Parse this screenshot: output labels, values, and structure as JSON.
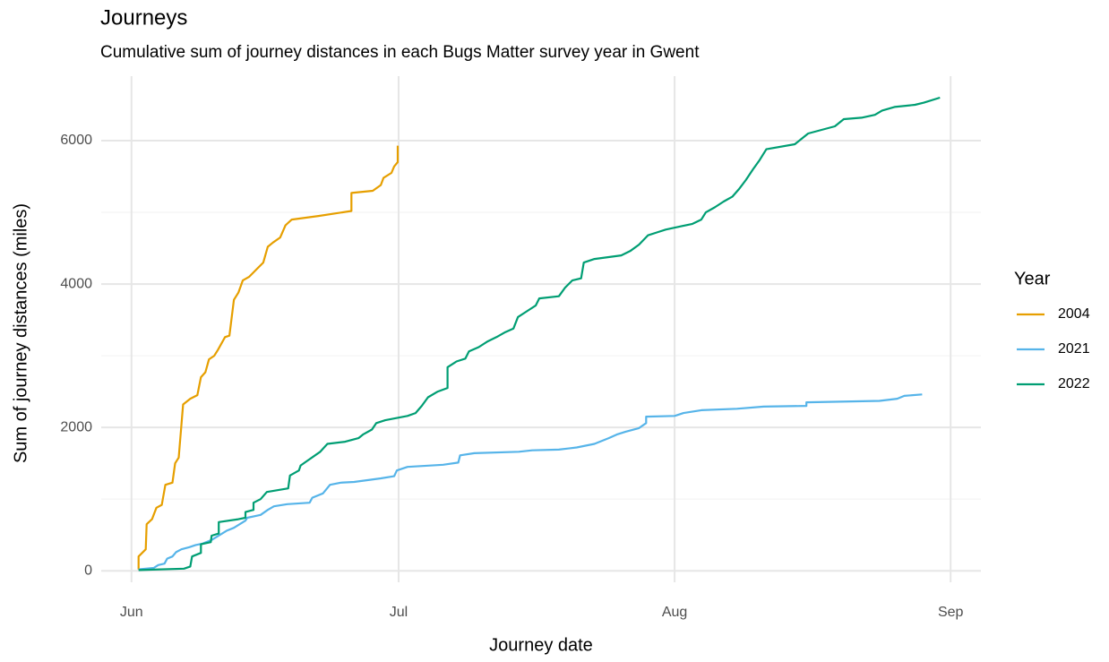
{
  "chart_data": {
    "type": "line",
    "title": "Journeys",
    "subtitle": "Cumulative sum of journey distances in each Bugs Matter survey year in Gwent",
    "x_label": "Journey date",
    "y_label": "Sum of journey distances (miles)",
    "legend_title": "Year",
    "legend_position": "right",
    "grid": true,
    "xlim": [
      -3.4,
      95.4
    ],
    "xticks": [
      {
        "value": 0,
        "label": "Jun"
      },
      {
        "value": 30,
        "label": "Jul"
      },
      {
        "value": 61,
        "label": "Aug"
      },
      {
        "value": 92,
        "label": "Sep"
      }
    ],
    "ylim": [
      -160,
      6900
    ],
    "yticks": [
      0,
      2000,
      4000,
      6000
    ],
    "yminor_ticks": [
      1000,
      3000,
      5000
    ],
    "series": [
      {
        "name": "2004",
        "color": "#E69F00",
        "x": [
          0.8,
          0.8,
          1.6,
          1.7,
          2.3,
          2.8,
          3.4,
          3.8,
          4.6,
          4.9,
          5.3,
          5.8,
          6.6,
          7.4,
          7.8,
          8.3,
          8.7,
          9.3,
          9.7,
          10.5,
          11.0,
          11.5,
          12.0,
          12.5,
          13.2,
          14.0,
          14.8,
          15.3,
          15.9,
          16.7,
          17.3,
          18.0,
          21.0,
          24.7,
          24.7,
          27.1,
          28.0,
          28.3,
          29.2,
          29.5,
          29.9,
          29.9
        ],
        "values": [
          20,
          200,
          300,
          650,
          720,
          880,
          920,
          1200,
          1230,
          1500,
          1580,
          2320,
          2400,
          2450,
          2700,
          2770,
          2950,
          3000,
          3080,
          3260,
          3280,
          3780,
          3880,
          4050,
          4100,
          4200,
          4300,
          4520,
          4580,
          4650,
          4820,
          4900,
          4950,
          5020,
          5270,
          5300,
          5380,
          5480,
          5550,
          5640,
          5700,
          5930
        ]
      },
      {
        "name": "2021",
        "color": "#56B4E9",
        "x": [
          0.8,
          2.5,
          3.0,
          3.7,
          4.0,
          4.6,
          5.0,
          5.6,
          6.5,
          7.2,
          8.0,
          9.0,
          10.7,
          11.5,
          12.8,
          13.0,
          14.5,
          15.3,
          16.0,
          17.5,
          20.0,
          20.3,
          21.5,
          22.3,
          23.5,
          25.0,
          28.0,
          29.5,
          29.8,
          31.0,
          35.0,
          36.7,
          36.9,
          38.5,
          43.5,
          45.0,
          48.0,
          50.0,
          52.0,
          53.6,
          54.5,
          55.5,
          57.0,
          57.8,
          57.8,
          61.0,
          62.0,
          64.0,
          68.0,
          71.0,
          75.8,
          75.8,
          84.0,
          86.0,
          86.8,
          88.8
        ],
        "values": [
          20,
          40,
          80,
          100,
          170,
          200,
          260,
          300,
          330,
          360,
          380,
          430,
          560,
          600,
          700,
          740,
          780,
          850,
          900,
          930,
          950,
          1020,
          1080,
          1200,
          1230,
          1240,
          1290,
          1320,
          1400,
          1450,
          1480,
          1510,
          1610,
          1640,
          1660,
          1680,
          1690,
          1720,
          1770,
          1850,
          1900,
          1940,
          1990,
          2060,
          2150,
          2160,
          2200,
          2240,
          2260,
          2290,
          2300,
          2350,
          2370,
          2400,
          2440,
          2460
        ]
      },
      {
        "name": "2022",
        "color": "#009E73",
        "x": [
          0.8,
          5.9,
          6.6,
          6.8,
          7.8,
          7.8,
          8.9,
          9.0,
          9.8,
          9.8,
          12.0,
          12.8,
          12.8,
          13.7,
          13.7,
          14.5,
          15.2,
          17.6,
          17.8,
          18.8,
          19.0,
          19.8,
          20.5,
          21.2,
          22.0,
          24.0,
          25.5,
          26.0,
          27.0,
          27.5,
          28.5,
          31.0,
          31.9,
          32.6,
          33.3,
          34.4,
          35.5,
          35.5,
          36.5,
          37.5,
          37.9,
          39.0,
          40.0,
          41.0,
          42.0,
          42.9,
          43.4,
          44.4,
          45.4,
          45.8,
          48.0,
          48.7,
          49.5,
          50.5,
          50.8,
          52.0,
          55.0,
          56.0,
          57.0,
          58.0,
          59.0,
          60.0,
          61.5,
          63.0,
          64.0,
          64.5,
          65.5,
          66.5,
          67.5,
          68.2,
          69.0,
          69.8,
          70.5,
          71.3,
          74.5,
          75.3,
          76.0,
          77.5,
          79.0,
          80.0,
          82.0,
          83.5,
          84.3,
          85.7,
          88.0,
          89.0,
          90.8
        ],
        "values": [
          10,
          30,
          60,
          200,
          250,
          370,
          400,
          490,
          520,
          680,
          720,
          740,
          820,
          850,
          950,
          1000,
          1100,
          1150,
          1330,
          1400,
          1470,
          1540,
          1600,
          1660,
          1770,
          1800,
          1850,
          1900,
          1970,
          2060,
          2100,
          2160,
          2200,
          2300,
          2420,
          2500,
          2550,
          2840,
          2920,
          2960,
          3060,
          3120,
          3200,
          3260,
          3330,
          3380,
          3540,
          3620,
          3700,
          3800,
          3830,
          3950,
          4050,
          4080,
          4300,
          4350,
          4400,
          4460,
          4550,
          4680,
          4720,
          4760,
          4800,
          4840,
          4900,
          5000,
          5070,
          5150,
          5220,
          5320,
          5450,
          5600,
          5720,
          5880,
          5950,
          6030,
          6100,
          6150,
          6200,
          6300,
          6320,
          6360,
          6420,
          6470,
          6500,
          6530,
          6600
        ]
      }
    ]
  }
}
